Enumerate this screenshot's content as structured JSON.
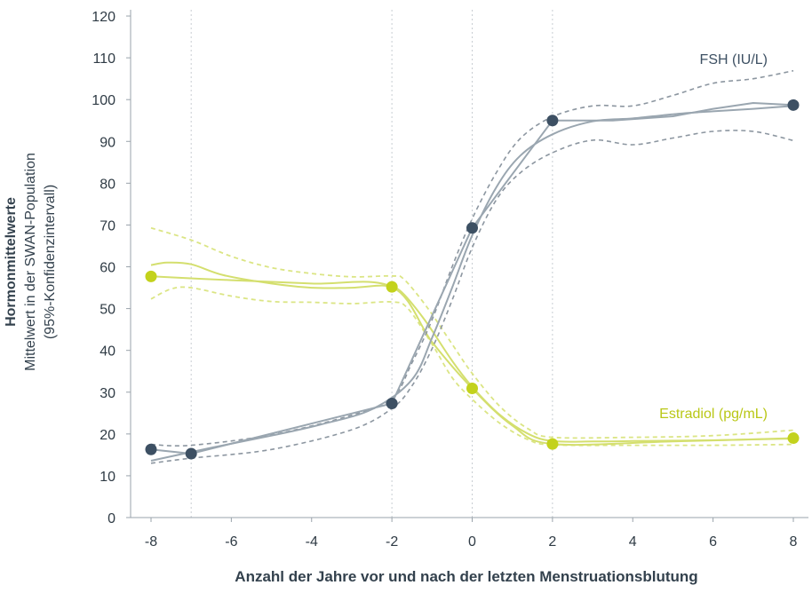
{
  "chart_data": {
    "type": "line",
    "xlabel": "Anzahl der Jahre vor und nach der letzten Menstruationsblutung",
    "ylabel_lines": [
      "Hormonmittelwerte",
      "Mittelwert in der SWAN-Population",
      "(95%-Konfidenzintervall)"
    ],
    "xlim": [
      -8.5,
      8.4
    ],
    "ylim": [
      0,
      120
    ],
    "x_ticks": [
      -8,
      -6,
      -4,
      -2,
      0,
      2,
      4,
      6,
      8
    ],
    "y_ticks": [
      0,
      10,
      20,
      30,
      40,
      50,
      60,
      70,
      80,
      90,
      100,
      110,
      120
    ],
    "vertical_dotted_lines": [
      -7,
      -2,
      0,
      2
    ],
    "colors": {
      "fsh": "#3d5063",
      "fsh_line": "#9aa6b0",
      "fsh_ci": "#8c96a0",
      "estradiol": "#c3d21c",
      "estradiol_line": "#d4df6e",
      "estradiol_ci": "#dbe584",
      "axis": "#9aa3ab",
      "grid": "#c8cdd2"
    },
    "series": [
      {
        "key": "fsh",
        "name": "FSH (IU/L)",
        "points": [
          [
            -8,
            16.3
          ],
          [
            -7,
            15.3
          ],
          [
            -2,
            27.3
          ],
          [
            0,
            69.3
          ],
          [
            2,
            95.0
          ],
          [
            8,
            98.7
          ]
        ],
        "smooth": [
          [
            -8,
            13.6
          ],
          [
            -6.5,
            16.7
          ],
          [
            -5,
            19.6
          ],
          [
            -3.8,
            22.2
          ],
          [
            -2.5,
            25.9
          ],
          [
            -1.5,
            33
          ],
          [
            -1,
            43
          ],
          [
            -0.5,
            55
          ],
          [
            0,
            67.5
          ],
          [
            0.6,
            79
          ],
          [
            1.2,
            86.6
          ],
          [
            2,
            91.7
          ],
          [
            3,
            94.8
          ],
          [
            4,
            95.5
          ],
          [
            5,
            96.5
          ],
          [
            6,
            97.2
          ],
          [
            7,
            97.8
          ],
          [
            8,
            98.5
          ]
        ],
        "ci_upper": [
          [
            -8,
            17.5
          ],
          [
            -7,
            17.3
          ],
          [
            -5,
            19.8
          ],
          [
            -3,
            24.5
          ],
          [
            -2,
            28.4
          ],
          [
            -1.5,
            37
          ],
          [
            -1,
            47.3
          ],
          [
            -0.5,
            60
          ],
          [
            0,
            71.5
          ],
          [
            0.6,
            82.5
          ],
          [
            1.2,
            90.7
          ],
          [
            2,
            95.9
          ],
          [
            3,
            98.5
          ],
          [
            4,
            98.5
          ],
          [
            5,
            101.0
          ],
          [
            6,
            103.9
          ],
          [
            7,
            105.0
          ],
          [
            8,
            106.9
          ]
        ],
        "ci_lower": [
          [
            -8,
            13.0
          ],
          [
            -7,
            14.2
          ],
          [
            -5,
            16.3
          ],
          [
            -3,
            21.0
          ],
          [
            -2,
            26.1
          ],
          [
            -1.5,
            31.5
          ],
          [
            -1,
            40.4
          ],
          [
            -0.5,
            52
          ],
          [
            0,
            64.6
          ],
          [
            0.6,
            76
          ],
          [
            1.2,
            82.5
          ],
          [
            2,
            87.3
          ],
          [
            3,
            90.3
          ],
          [
            4,
            89.2
          ],
          [
            5,
            90.8
          ],
          [
            6,
            92.4
          ],
          [
            7,
            92.4
          ],
          [
            8,
            90.2
          ]
        ]
      },
      {
        "key": "estradiol",
        "name": "Estradiol (pg/mL)",
        "points": [
          [
            -8,
            57.7
          ],
          [
            -2,
            55.2
          ],
          [
            0,
            30.9
          ],
          [
            2,
            17.6
          ],
          [
            8,
            19.0
          ]
        ],
        "smooth": [
          [
            -8,
            60.4
          ],
          [
            -7.6,
            61.0
          ],
          [
            -7,
            60.6
          ],
          [
            -6.2,
            58.0
          ],
          [
            -5,
            56.0
          ],
          [
            -4,
            55.0
          ],
          [
            -3,
            55.0
          ],
          [
            -2.2,
            55.5
          ],
          [
            -1.8,
            54.3
          ],
          [
            -1.2,
            47.5
          ],
          [
            -0.5,
            37.5
          ],
          [
            0,
            31.3
          ],
          [
            0.7,
            24.5
          ],
          [
            1.4,
            20.0
          ],
          [
            2,
            18.3
          ],
          [
            3,
            18.2
          ],
          [
            4,
            18.3
          ],
          [
            5,
            18.4
          ],
          [
            6,
            18.5
          ],
          [
            7,
            18.7
          ],
          [
            8,
            18.9
          ]
        ],
        "ci_upper": [
          [
            -8,
            69.3
          ],
          [
            -7,
            66.4
          ],
          [
            -6,
            62.5
          ],
          [
            -5,
            59.8
          ],
          [
            -4,
            58.4
          ],
          [
            -3,
            57.6
          ],
          [
            -2,
            57.8
          ],
          [
            -1.7,
            57.0
          ],
          [
            -1.1,
            50.0
          ],
          [
            -0.5,
            41.5
          ],
          [
            0,
            34.5
          ],
          [
            0.7,
            26.5
          ],
          [
            1.4,
            21.2
          ],
          [
            2,
            19.2
          ],
          [
            4,
            19.2
          ],
          [
            6,
            19.6
          ],
          [
            8,
            20.9
          ]
        ],
        "ci_lower": [
          [
            -8,
            52.3
          ],
          [
            -7.5,
            54.7
          ],
          [
            -7,
            55.0
          ],
          [
            -6,
            53.0
          ],
          [
            -5,
            51.7
          ],
          [
            -4,
            51.5
          ],
          [
            -3,
            51.2
          ],
          [
            -2,
            51.6
          ],
          [
            -1.6,
            50.0
          ],
          [
            -1,
            41.5
          ],
          [
            -0.5,
            33.5
          ],
          [
            0,
            28.3
          ],
          [
            0.7,
            22.5
          ],
          [
            1.4,
            18.6
          ],
          [
            2,
            17.4
          ],
          [
            4,
            17.3
          ],
          [
            6,
            17.3
          ],
          [
            8,
            17.5
          ]
        ]
      }
    ],
    "fsh_secondary_line": [
      [
        -8,
        16.3
      ],
      [
        -7,
        15.3
      ],
      [
        -2,
        27.3
      ],
      [
        0,
        69.3
      ],
      [
        2,
        95.0
      ],
      [
        3.5,
        95.0
      ],
      [
        5,
        96.0
      ],
      [
        6,
        97.8
      ],
      [
        7,
        99.2
      ],
      [
        8,
        98.7
      ]
    ],
    "estradiol_secondary_line": [
      [
        -8,
        57.7
      ],
      [
        -6,
        56.8
      ],
      [
        -4,
        56.0
      ],
      [
        -2,
        55.2
      ],
      [
        -1,
        42.0
      ],
      [
        0,
        30.9
      ],
      [
        1,
        22.0
      ],
      [
        2,
        17.6
      ],
      [
        5,
        18.2
      ],
      [
        8,
        19.0
      ]
    ]
  }
}
